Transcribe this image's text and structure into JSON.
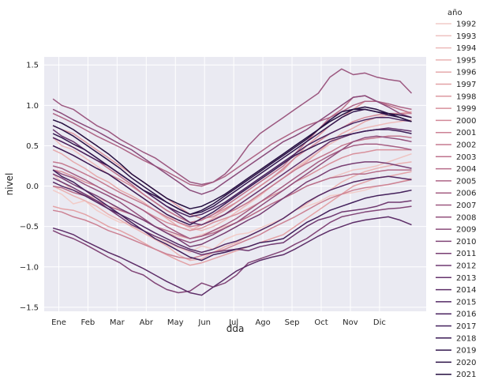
{
  "chart_data": {
    "type": "line",
    "xlabel": "dda",
    "ylabel": "nivel",
    "x_ticks": [
      "Ene",
      "Feb",
      "Mar",
      "Abr",
      "May",
      "Jun",
      "Jul",
      "Ago",
      "Sep",
      "Oct",
      "Nov",
      "Dic"
    ],
    "y_ticks": [
      "−1.5",
      "−1.0",
      "−0.5",
      "0.0",
      "0.5",
      "1.0",
      "1.5"
    ],
    "y_tick_values": [
      -1.5,
      -1.0,
      -0.5,
      0.0,
      0.5,
      1.0,
      1.5
    ],
    "xlim": [
      0,
      13.1
    ],
    "ylim": [
      -1.55,
      1.6
    ],
    "grid": true,
    "legend_title": "año",
    "legend_position": "right outside",
    "x": [
      0.3,
      0.6,
      1,
      1.4,
      1.8,
      2.2,
      2.6,
      3,
      3.4,
      3.8,
      4.2,
      4.6,
      5,
      5.4,
      5.8,
      6.2,
      6.6,
      7,
      7.4,
      7.8,
      8.2,
      8.6,
      9,
      9.4,
      9.8,
      10.2,
      10.6,
      11,
      11.4,
      11.8,
      12.2,
      12.6
    ],
    "series": [
      {
        "name": "1992",
        "color": "#f2ccc8",
        "values": [
          -0.05,
          -0.1,
          -0.22,
          -0.18,
          -0.3,
          -0.38,
          -0.45,
          -0.45,
          -0.55,
          -0.62,
          -0.7,
          -0.76,
          -0.82,
          -0.74,
          -0.78,
          -0.66,
          -0.6,
          -0.58,
          -0.52,
          -0.46,
          -0.4,
          -0.3,
          -0.25,
          -0.2,
          -0.12,
          -0.1,
          -0.08,
          -0.05,
          0.0,
          0.02,
          0.05,
          0.1
        ]
      },
      {
        "name": "1993",
        "color": "#efc3c1",
        "values": [
          0.15,
          0.05,
          -0.05,
          -0.1,
          -0.15,
          -0.2,
          -0.3,
          -0.35,
          -0.42,
          -0.5,
          -0.58,
          -0.62,
          -0.65,
          -0.6,
          -0.55,
          -0.5,
          -0.45,
          -0.38,
          -0.3,
          -0.22,
          -0.15,
          -0.08,
          0.0,
          0.05,
          0.1,
          0.15,
          0.2,
          0.22,
          0.25,
          0.3,
          0.35,
          0.4
        ]
      },
      {
        "name": "1994",
        "color": "#edbbba",
        "values": [
          0.6,
          0.5,
          0.45,
          0.35,
          0.25,
          0.15,
          0.05,
          -0.05,
          -0.15,
          -0.25,
          -0.35,
          -0.45,
          -0.52,
          -0.55,
          -0.5,
          -0.42,
          -0.32,
          -0.22,
          -0.12,
          0.0,
          0.1,
          0.22,
          0.32,
          0.42,
          0.52,
          0.6,
          0.68,
          0.72,
          0.75,
          0.78,
          0.8,
          0.82
        ]
      },
      {
        "name": "1995",
        "color": "#eab2b2",
        "values": [
          0.0,
          -0.05,
          -0.12,
          -0.18,
          -0.25,
          -0.35,
          -0.42,
          -0.5,
          -0.58,
          -0.66,
          -0.74,
          -0.85,
          -0.92,
          -0.9,
          -0.82,
          -0.75,
          -0.7,
          -0.62,
          -0.55,
          -0.48,
          -0.4,
          -0.3,
          -0.22,
          -0.12,
          -0.05,
          0.05,
          0.12,
          0.18,
          0.22,
          0.25,
          0.28,
          0.3
        ]
      },
      {
        "name": "1996",
        "color": "#e6aaac",
        "values": [
          0.45,
          0.4,
          0.3,
          0.22,
          0.12,
          0.05,
          -0.05,
          -0.12,
          -0.2,
          -0.3,
          -0.4,
          -0.5,
          -0.55,
          -0.48,
          -0.4,
          -0.35,
          -0.28,
          -0.2,
          -0.1,
          0.0,
          0.1,
          0.2,
          0.3,
          0.42,
          0.55,
          0.65,
          0.72,
          0.8,
          0.85,
          0.88,
          0.9,
          0.92
        ]
      },
      {
        "name": "1997",
        "color": "#e3a2a6",
        "values": [
          -0.25,
          -0.28,
          -0.3,
          -0.35,
          -0.42,
          -0.5,
          -0.55,
          -0.62,
          -0.7,
          -0.78,
          -0.85,
          -0.92,
          -0.98,
          -0.95,
          -0.9,
          -0.85,
          -0.8,
          -0.75,
          -0.7,
          -0.65,
          -0.6,
          -0.5,
          -0.4,
          -0.3,
          -0.2,
          -0.1,
          0.0,
          0.05,
          0.1,
          0.12,
          0.15,
          0.18
        ]
      },
      {
        "name": "1998",
        "color": "#dd99a1",
        "values": [
          0.75,
          0.7,
          0.65,
          0.55,
          0.45,
          0.35,
          0.25,
          0.15,
          0.05,
          -0.05,
          -0.15,
          -0.25,
          -0.35,
          -0.4,
          -0.38,
          -0.3,
          -0.2,
          -0.1,
          0.0,
          0.1,
          0.2,
          0.35,
          0.5,
          0.62,
          0.75,
          0.85,
          0.95,
          1.05,
          1.05,
          1.0,
          0.95,
          0.9
        ]
      },
      {
        "name": "1999",
        "color": "#d8919c",
        "values": [
          0.2,
          0.18,
          0.12,
          0.05,
          0.0,
          -0.08,
          -0.15,
          -0.22,
          -0.3,
          -0.38,
          -0.45,
          -0.5,
          -0.55,
          -0.52,
          -0.45,
          -0.4,
          -0.35,
          -0.28,
          -0.2,
          -0.12,
          -0.05,
          0.05,
          0.12,
          0.2,
          0.28,
          0.35,
          0.4,
          0.42,
          0.45,
          0.45,
          0.45,
          0.45
        ]
      },
      {
        "name": "2000",
        "color": "#d28998",
        "values": [
          0.5,
          0.45,
          0.38,
          0.3,
          0.22,
          0.15,
          0.08,
          0.0,
          -0.1,
          -0.2,
          -0.3,
          -0.38,
          -0.45,
          -0.42,
          -0.35,
          -0.28,
          -0.2,
          -0.1,
          0.0,
          0.1,
          0.22,
          0.35,
          0.45,
          0.55,
          0.65,
          0.72,
          0.8,
          0.85,
          0.88,
          0.9,
          0.9,
          0.9
        ]
      },
      {
        "name": "2001",
        "color": "#cc8294",
        "values": [
          -0.3,
          -0.32,
          -0.38,
          -0.42,
          -0.48,
          -0.55,
          -0.6,
          -0.66,
          -0.72,
          -0.78,
          -0.84,
          -0.88,
          -0.9,
          -0.86,
          -0.82,
          -0.78,
          -0.72,
          -0.66,
          -0.6,
          -0.52,
          -0.45,
          -0.38,
          -0.3,
          -0.22,
          -0.15,
          -0.1,
          -0.05,
          -0.02,
          0.0,
          0.02,
          0.05,
          0.08
        ]
      },
      {
        "name": "2002",
        "color": "#c57a90",
        "values": [
          0.3,
          0.28,
          0.22,
          0.15,
          0.08,
          0.0,
          -0.08,
          -0.15,
          -0.22,
          -0.3,
          -0.38,
          -0.45,
          -0.5,
          -0.48,
          -0.42,
          -0.35,
          -0.28,
          -0.2,
          -0.1,
          0.0,
          0.1,
          0.2,
          0.28,
          0.35,
          0.42,
          0.5,
          0.55,
          0.58,
          0.6,
          0.62,
          0.62,
          0.6
        ]
      },
      {
        "name": "2003",
        "color": "#be738c",
        "values": [
          0.6,
          0.55,
          0.48,
          0.4,
          0.32,
          0.22,
          0.12,
          0.02,
          -0.1,
          -0.2,
          -0.3,
          -0.38,
          -0.45,
          -0.42,
          -0.35,
          -0.25,
          -0.15,
          -0.05,
          0.05,
          0.15,
          0.25,
          0.4,
          0.55,
          0.7,
          0.85,
          0.95,
          1.1,
          1.12,
          1.05,
          1.0,
          0.95,
          0.9
        ]
      },
      {
        "name": "2004",
        "color": "#b66c89",
        "values": [
          0.0,
          -0.02,
          -0.08,
          -0.12,
          -0.18,
          -0.25,
          -0.3,
          -0.35,
          -0.42,
          -0.5,
          -0.55,
          -0.6,
          -0.65,
          -0.62,
          -0.58,
          -0.52,
          -0.45,
          -0.38,
          -0.3,
          -0.22,
          -0.15,
          -0.08,
          0.0,
          0.05,
          0.1,
          0.12,
          0.15,
          0.15,
          0.18,
          0.2,
          0.2,
          0.2
        ]
      },
      {
        "name": "2005",
        "color": "#ae6586",
        "values": [
          0.9,
          0.85,
          0.78,
          0.7,
          0.62,
          0.55,
          0.48,
          0.4,
          0.32,
          0.25,
          0.18,
          0.1,
          0.02,
          0.0,
          0.05,
          0.12,
          0.22,
          0.32,
          0.42,
          0.52,
          0.6,
          0.68,
          0.75,
          0.8,
          0.85,
          0.92,
          1.0,
          1.05,
          1.05,
          1.02,
          0.98,
          0.95
        ]
      },
      {
        "name": "2006",
        "color": "#a55e83",
        "values": [
          0.25,
          0.22,
          0.15,
          0.08,
          0.0,
          -0.08,
          -0.15,
          -0.22,
          -0.3,
          -0.4,
          -0.5,
          -0.58,
          -0.65,
          -0.62,
          -0.55,
          -0.48,
          -0.4,
          -0.3,
          -0.2,
          -0.1,
          0.0,
          0.1,
          0.2,
          0.3,
          0.38,
          0.45,
          0.5,
          0.52,
          0.52,
          0.5,
          0.48,
          0.45
        ]
      },
      {
        "name": "2007",
        "color": "#9c5880",
        "values": [
          1.08,
          1.0,
          0.95,
          0.85,
          0.75,
          0.68,
          0.58,
          0.5,
          0.42,
          0.35,
          0.25,
          0.15,
          0.05,
          0.02,
          0.05,
          0.15,
          0.3,
          0.5,
          0.65,
          0.75,
          0.85,
          0.95,
          1.05,
          1.15,
          1.35,
          1.45,
          1.38,
          1.4,
          1.35,
          1.32,
          1.3,
          1.15
        ]
      },
      {
        "name": "2008",
        "color": "#93517d",
        "values": [
          0.2,
          0.15,
          0.1,
          0.02,
          -0.05,
          -0.12,
          -0.2,
          -0.3,
          -0.4,
          -0.5,
          -0.58,
          -0.65,
          -0.7,
          -0.66,
          -0.6,
          -0.52,
          -0.45,
          -0.35,
          -0.25,
          -0.15,
          -0.05,
          0.05,
          0.15,
          0.25,
          0.35,
          0.45,
          0.55,
          0.6,
          0.62,
          0.6,
          0.58,
          0.55
        ]
      },
      {
        "name": "2009",
        "color": "#8a4b7a",
        "values": [
          0.95,
          0.9,
          0.82,
          0.75,
          0.68,
          0.6,
          0.52,
          0.45,
          0.35,
          0.25,
          0.15,
          0.05,
          -0.05,
          -0.1,
          -0.05,
          0.05,
          0.15,
          0.25,
          0.35,
          0.45,
          0.55,
          0.62,
          0.7,
          0.8,
          0.9,
          1.0,
          1.1,
          1.12,
          1.05,
          0.98,
          0.9,
          0.85
        ]
      },
      {
        "name": "2010",
        "color": "#814577",
        "values": [
          -0.55,
          -0.6,
          -0.65,
          -0.72,
          -0.8,
          -0.88,
          -0.95,
          -1.05,
          -1.1,
          -1.2,
          -1.28,
          -1.32,
          -1.3,
          -1.2,
          -1.25,
          -1.2,
          -1.1,
          -0.95,
          -0.9,
          -0.85,
          -0.8,
          -0.72,
          -0.65,
          -0.55,
          -0.45,
          -0.38,
          -0.35,
          -0.32,
          -0.3,
          -0.28,
          -0.27,
          -0.25
        ]
      },
      {
        "name": "2011",
        "color": "#783f73",
        "values": [
          0.15,
          0.1,
          0.02,
          -0.05,
          -0.12,
          -0.2,
          -0.28,
          -0.35,
          -0.42,
          -0.5,
          -0.58,
          -0.66,
          -0.75,
          -0.72,
          -0.65,
          -0.58,
          -0.5,
          -0.42,
          -0.35,
          -0.25,
          -0.15,
          -0.05,
          0.05,
          0.12,
          0.2,
          0.25,
          0.28,
          0.3,
          0.3,
          0.28,
          0.25,
          0.22
        ]
      },
      {
        "name": "2012",
        "color": "#6f3970",
        "values": [
          0.1,
          0.05,
          -0.02,
          -0.1,
          -0.18,
          -0.28,
          -0.38,
          -0.48,
          -0.55,
          -0.62,
          -0.68,
          -0.75,
          -0.8,
          -0.85,
          -0.82,
          -0.8,
          -0.78,
          -0.8,
          -0.75,
          -0.72,
          -0.7,
          -0.6,
          -0.5,
          -0.42,
          -0.38,
          -0.32,
          -0.3,
          -0.28,
          -0.25,
          -0.2,
          -0.2,
          -0.18
        ]
      },
      {
        "name": "2013",
        "color": "#66336c",
        "values": [
          0.7,
          0.62,
          0.55,
          0.45,
          0.35,
          0.25,
          0.15,
          0.05,
          -0.05,
          -0.15,
          -0.25,
          -0.35,
          -0.45,
          -0.48,
          -0.42,
          -0.35,
          -0.25,
          -0.15,
          -0.05,
          0.05,
          0.15,
          0.25,
          0.35,
          0.45,
          0.55,
          0.6,
          0.65,
          0.68,
          0.7,
          0.72,
          0.7,
          0.68
        ]
      },
      {
        "name": "2014",
        "color": "#5d2e68",
        "values": [
          -0.52,
          -0.55,
          -0.6,
          -0.68,
          -0.75,
          -0.82,
          -0.88,
          -0.95,
          -1.02,
          -1.1,
          -1.18,
          -1.25,
          -1.32,
          -1.35,
          -1.25,
          -1.15,
          -1.05,
          -0.98,
          -0.92,
          -0.88,
          -0.85,
          -0.78,
          -0.7,
          -0.62,
          -0.55,
          -0.5,
          -0.45,
          -0.42,
          -0.4,
          -0.38,
          -0.42,
          -0.48
        ]
      },
      {
        "name": "2015",
        "color": "#542964",
        "values": [
          0.05,
          0.0,
          -0.05,
          -0.12,
          -0.2,
          -0.28,
          -0.35,
          -0.42,
          -0.5,
          -0.58,
          -0.65,
          -0.72,
          -0.78,
          -0.82,
          -0.78,
          -0.72,
          -0.68,
          -0.62,
          -0.55,
          -0.48,
          -0.4,
          -0.3,
          -0.2,
          -0.12,
          -0.05,
          0.0,
          0.05,
          0.08,
          0.1,
          0.12,
          0.1,
          0.08
        ]
      },
      {
        "name": "2016",
        "color": "#4b2460",
        "values": [
          0.6,
          0.55,
          0.48,
          0.4,
          0.32,
          0.25,
          0.15,
          0.05,
          -0.05,
          -0.15,
          -0.25,
          -0.32,
          -0.38,
          -0.35,
          -0.28,
          -0.2,
          -0.1,
          0.0,
          0.1,
          0.2,
          0.3,
          0.4,
          0.5,
          0.58,
          0.65,
          0.72,
          0.78,
          0.82,
          0.85,
          0.85,
          0.82,
          0.8
        ]
      },
      {
        "name": "2017",
        "color": "#43205b",
        "values": [
          0.2,
          0.12,
          0.05,
          -0.05,
          -0.15,
          -0.25,
          -0.35,
          -0.45,
          -0.55,
          -0.65,
          -0.72,
          -0.8,
          -0.88,
          -0.92,
          -0.85,
          -0.82,
          -0.78,
          -0.75,
          -0.7,
          -0.68,
          -0.65,
          -0.55,
          -0.45,
          -0.38,
          -0.3,
          -0.25,
          -0.2,
          -0.15,
          -0.12,
          -0.1,
          -0.08,
          -0.05
        ]
      },
      {
        "name": "2018",
        "color": "#3b1b55",
        "values": [
          0.5,
          0.45,
          0.38,
          0.3,
          0.22,
          0.15,
          0.05,
          -0.05,
          -0.15,
          -0.25,
          -0.35,
          -0.42,
          -0.48,
          -0.4,
          -0.32,
          -0.22,
          -0.12,
          -0.02,
          0.08,
          0.18,
          0.28,
          0.38,
          0.45,
          0.52,
          0.58,
          0.62,
          0.65,
          0.68,
          0.7,
          0.7,
          0.68,
          0.65
        ]
      },
      {
        "name": "2019",
        "color": "#33174e",
        "values": [
          0.65,
          0.6,
          0.52,
          0.45,
          0.35,
          0.25,
          0.15,
          0.05,
          -0.05,
          -0.12,
          -0.2,
          -0.28,
          -0.35,
          -0.32,
          -0.25,
          -0.15,
          -0.05,
          0.05,
          0.15,
          0.25,
          0.35,
          0.45,
          0.55,
          0.65,
          0.75,
          0.85,
          0.92,
          0.95,
          0.92,
          0.88,
          0.85,
          0.8
        ]
      },
      {
        "name": "2020",
        "color": "#2c1347",
        "values": [
          0.75,
          0.7,
          0.62,
          0.52,
          0.42,
          0.32,
          0.22,
          0.1,
          0.0,
          -0.1,
          -0.2,
          -0.28,
          -0.35,
          -0.3,
          -0.22,
          -0.12,
          -0.02,
          0.08,
          0.18,
          0.28,
          0.38,
          0.48,
          0.58,
          0.7,
          0.82,
          0.92,
          0.95,
          0.95,
          0.92,
          0.9,
          0.88,
          0.85
        ]
      },
      {
        "name": "2021",
        "color": "#250f40",
        "values": [
          0.82,
          0.78,
          0.7,
          0.6,
          0.5,
          0.4,
          0.28,
          0.15,
          0.05,
          -0.05,
          -0.15,
          -0.22,
          -0.28,
          -0.25,
          -0.18,
          -0.1,
          0.0,
          0.1,
          0.2,
          0.3,
          0.4,
          0.5,
          0.6,
          0.7,
          0.8,
          0.88,
          0.95,
          0.98,
          0.95,
          0.9,
          0.85,
          0.8
        ]
      }
    ]
  }
}
